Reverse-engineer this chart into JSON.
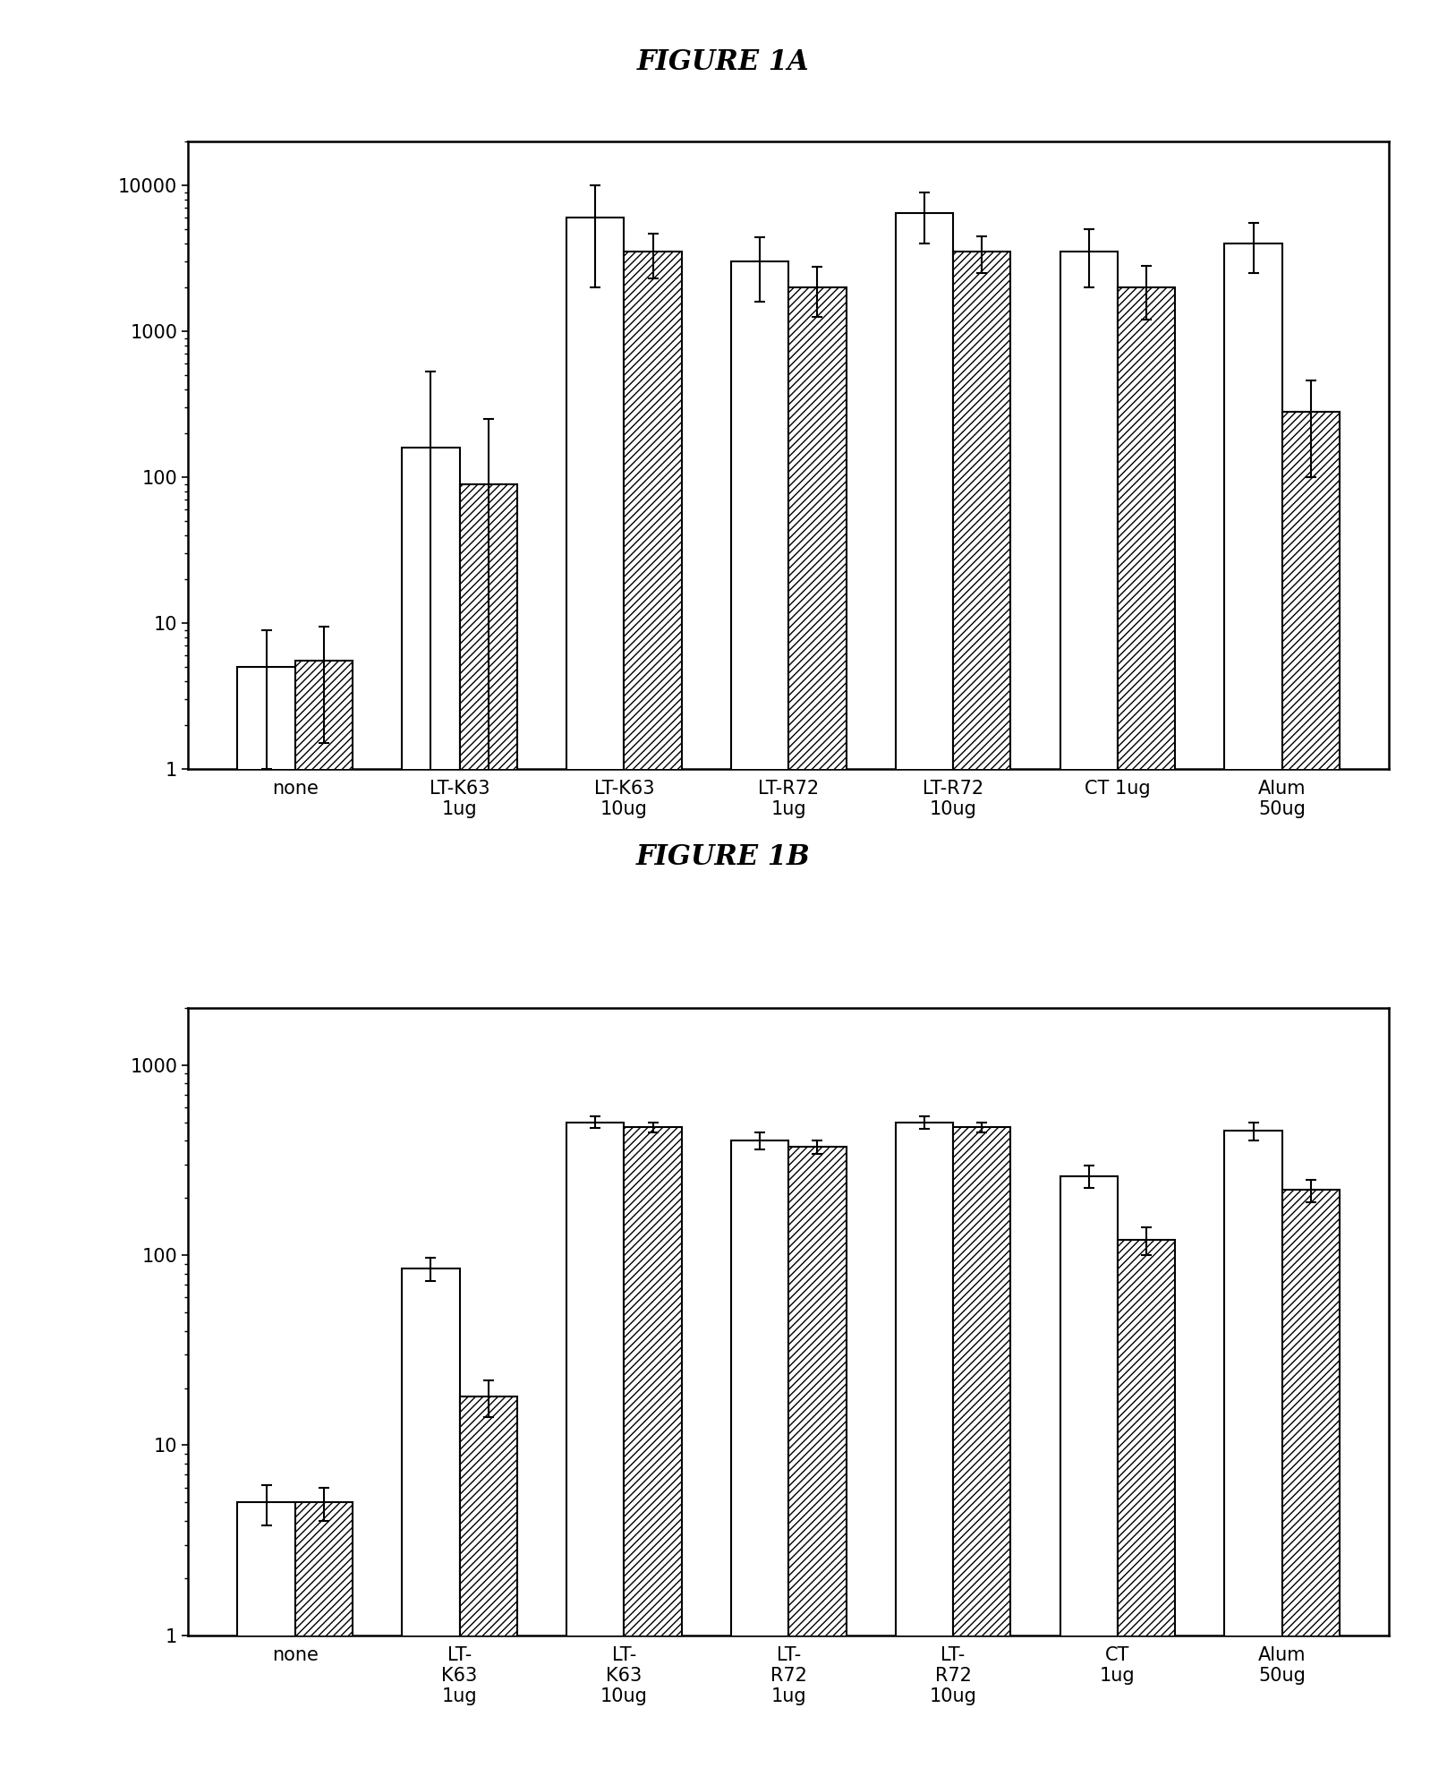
{
  "title_a": "FIGURE 1A",
  "title_b": "FIGURE 1B",
  "categories_a": [
    "none",
    "LT-K63\n1ug",
    "LT-K63\n10ug",
    "LT-R72\n1ug",
    "LT-R72\n10ug",
    "CT 1ug",
    "Alum\n50ug"
  ],
  "categories_b": [
    "none",
    "LT-\nK63\n1ug",
    "LT-\nK63\n10ug",
    "LT-\nR72\n1ug",
    "LT-\nR72\n10ug",
    "CT\n1ug",
    "Alum\n50ug"
  ],
  "white_bars_a": [
    5,
    160,
    6000,
    3000,
    6500,
    3500,
    4000
  ],
  "hatched_bars_a": [
    5.5,
    90,
    3500,
    2000,
    3500,
    2000,
    280
  ],
  "white_err_a": [
    4,
    370,
    4000,
    1400,
    2500,
    1500,
    1500
  ],
  "hatched_err_a": [
    4,
    160,
    1200,
    750,
    1000,
    800,
    180
  ],
  "white_bars_b": [
    5,
    85,
    500,
    400,
    500,
    260,
    450
  ],
  "hatched_bars_b": [
    5,
    18,
    470,
    370,
    470,
    120,
    220
  ],
  "white_err_b": [
    1.2,
    12,
    35,
    40,
    40,
    35,
    50
  ],
  "hatched_err_b": [
    1,
    4,
    30,
    30,
    30,
    20,
    30
  ],
  "ylim_a": [
    1,
    20000
  ],
  "ylim_b": [
    1,
    2000
  ],
  "yticks_a": [
    1,
    10,
    100,
    1000,
    10000
  ],
  "yticks_b": [
    1,
    10,
    100,
    1000
  ],
  "bar_width": 0.35,
  "figure_bg": "#ffffff",
  "hatch_pattern": "////"
}
